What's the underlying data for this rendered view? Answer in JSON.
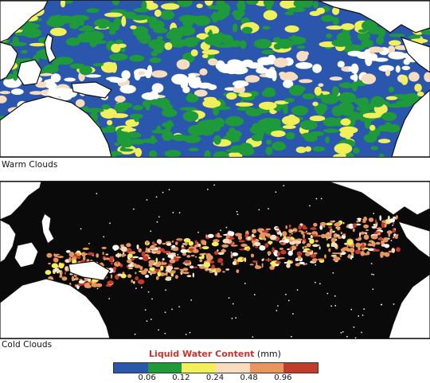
{
  "panels": [
    {
      "caption": "Warm Clouds"
    },
    {
      "caption": "Cold Clouds"
    }
  ],
  "legend": {
    "title": "Liquid Water Content",
    "unit": "(mm)",
    "colors": [
      "#2a57ad",
      "#1e9a3a",
      "#f2f05a",
      "#f7dcc0",
      "#e9955f",
      "#c43b2e"
    ],
    "ticks": [
      "0.06",
      "0.12",
      "0.24",
      "0.48",
      "0.96"
    ]
  },
  "colors": {
    "ocean_warm": "#2a57ad",
    "ocean_cold": "#0a0a0a",
    "land": "#ffffff",
    "coast_on_dark": "#ffffff",
    "coast_on_blue": "#111111"
  }
}
